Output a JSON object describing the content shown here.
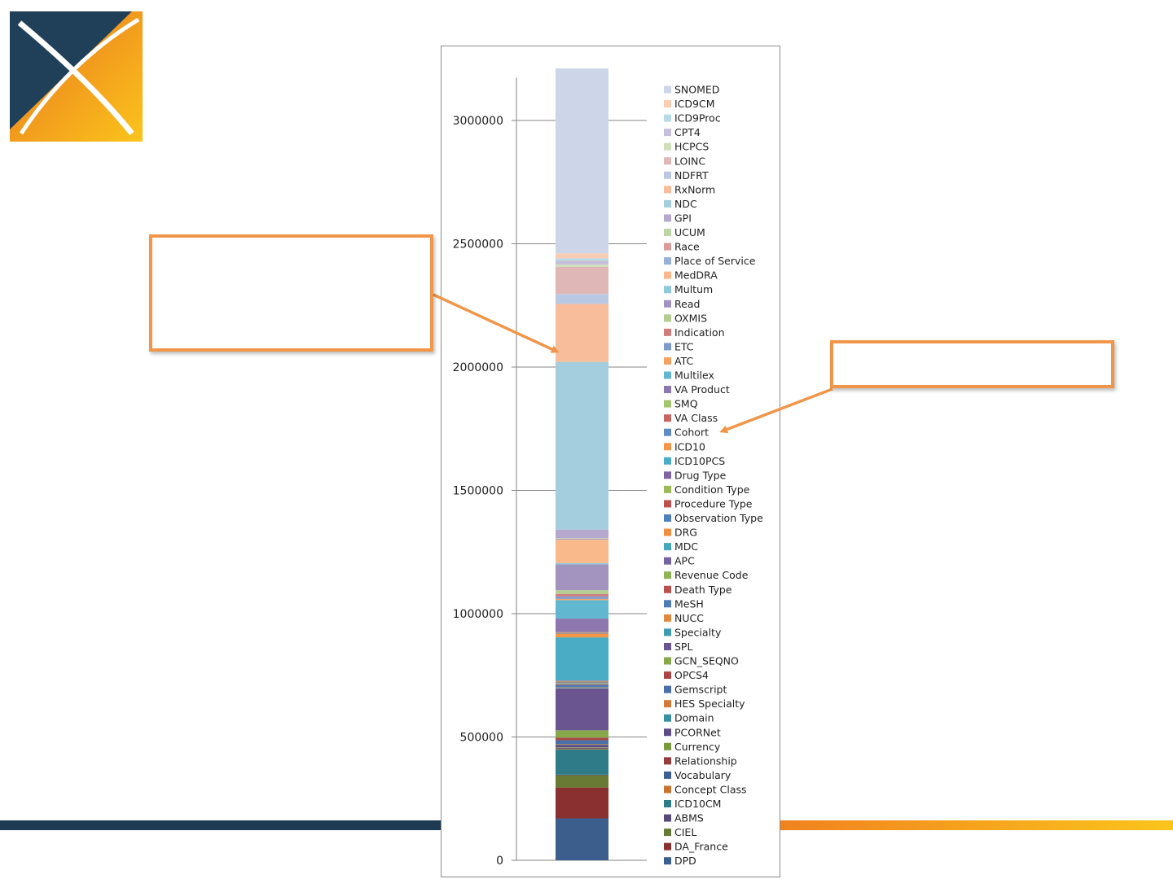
{
  "colors": {
    "navy": "#1f3b53",
    "orange": "#f0821e",
    "yellow": "#fbc41c",
    "callout_border": "#f0964b"
  },
  "logo": {
    "icon": "ohdsi-x-logo-icon"
  },
  "callouts": {
    "left_text": "",
    "right_text": ""
  },
  "chart_data": {
    "type": "bar",
    "stacked": true,
    "title": "",
    "xlabel": "",
    "ylabel": "",
    "ylim": [
      0,
      3200000
    ],
    "yticks": [
      0,
      500000,
      1000000,
      1500000,
      2000000,
      2500000,
      3000000
    ],
    "ytick_labels": [
      "0",
      "500000",
      "1000000",
      "1500000",
      "2000000",
      "2500000",
      "3000000"
    ],
    "grid": false,
    "legend_placement": "right",
    "categories": [
      ""
    ],
    "series": [
      {
        "name": "DPD",
        "values": [
          170000
        ],
        "color": "#3b5e8c"
      },
      {
        "name": "DA_France",
        "values": [
          125000
        ],
        "color": "#8b3030"
      },
      {
        "name": "CIEL",
        "values": [
          50000
        ],
        "color": "#687a33"
      },
      {
        "name": "ABMS",
        "values": [
          2000
        ],
        "color": "#574a7a"
      },
      {
        "name": "ICD10CM",
        "values": [
          103000
        ],
        "color": "#2f7b87"
      },
      {
        "name": "Concept Class",
        "values": [
          2000
        ],
        "color": "#c8732e"
      },
      {
        "name": "Vocabulary",
        "values": [
          2000
        ],
        "color": "#3e5f93"
      },
      {
        "name": "Relationship",
        "values": [
          2000
        ],
        "color": "#943d3b"
      },
      {
        "name": "Currency",
        "values": [
          2000
        ],
        "color": "#7a9a3f"
      },
      {
        "name": "PCORNet",
        "values": [
          10000
        ],
        "color": "#5e4a85"
      },
      {
        "name": "Domain",
        "values": [
          2000
        ],
        "color": "#3a8fa0"
      },
      {
        "name": "HES Specialty",
        "values": [
          2000
        ],
        "color": "#d67b37"
      },
      {
        "name": "Gemscript",
        "values": [
          15000
        ],
        "color": "#4a6ea8"
      },
      {
        "name": "OPCS4",
        "values": [
          10000
        ],
        "color": "#aa4744"
      },
      {
        "name": "GCN_SEQNO",
        "values": [
          30000
        ],
        "color": "#86a74a"
      },
      {
        "name": "SPL",
        "values": [
          170000
        ],
        "color": "#6a5590"
      },
      {
        "name": "Specialty",
        "values": [
          2000
        ],
        "color": "#3d9cb0"
      },
      {
        "name": "NUCC",
        "values": [
          2000
        ],
        "color": "#e08a3e"
      },
      {
        "name": "MeSH",
        "values": [
          10000
        ],
        "color": "#4f7cb5"
      },
      {
        "name": "Death Type",
        "values": [
          2000
        ],
        "color": "#b8504d"
      },
      {
        "name": "Revenue Code",
        "values": [
          2000
        ],
        "color": "#8fb455"
      },
      {
        "name": "APC",
        "values": [
          2000
        ],
        "color": "#7563a0"
      },
      {
        "name": "MDC",
        "values": [
          2000
        ],
        "color": "#45a7bd"
      },
      {
        "name": "DRG",
        "values": [
          2000
        ],
        "color": "#f08d3f"
      },
      {
        "name": "Observation Type",
        "values": [
          2000
        ],
        "color": "#4f81bd"
      },
      {
        "name": "Procedure Type",
        "values": [
          2000
        ],
        "color": "#c0504d"
      },
      {
        "name": "Condition Type",
        "values": [
          2000
        ],
        "color": "#9bbb59"
      },
      {
        "name": "Drug Type",
        "values": [
          2000
        ],
        "color": "#8064a2"
      },
      {
        "name": "ICD10PCS",
        "values": [
          175000
        ],
        "color": "#4bacc6"
      },
      {
        "name": "ICD10",
        "values": [
          15000
        ],
        "color": "#f79646"
      },
      {
        "name": "Cohort",
        "values": [
          2000
        ],
        "color": "#5f8ac6"
      },
      {
        "name": "VA Class",
        "values": [
          2000
        ],
        "color": "#c86663"
      },
      {
        "name": "SMQ",
        "values": [
          2000
        ],
        "color": "#a5c46e"
      },
      {
        "name": "VA Product",
        "values": [
          55000
        ],
        "color": "#8e76ae"
      },
      {
        "name": "Multilex",
        "values": [
          75000
        ],
        "color": "#60b7cf"
      },
      {
        "name": "ATC",
        "values": [
          5000
        ],
        "color": "#f8a261"
      },
      {
        "name": "ETC",
        "values": [
          10000
        ],
        "color": "#7e9bcd"
      },
      {
        "name": "Indication",
        "values": [
          10000
        ],
        "color": "#d07d7b"
      },
      {
        "name": "OXMIS",
        "values": [
          15000
        ],
        "color": "#b3ce8e"
      },
      {
        "name": "Read",
        "values": [
          105000
        ],
        "color": "#a393bf"
      },
      {
        "name": "Multum",
        "values": [
          5000
        ],
        "color": "#8ccadc"
      },
      {
        "name": "MedDRA",
        "values": [
          95000
        ],
        "color": "#f9b98a"
      },
      {
        "name": "Place of Service",
        "values": [
          2000
        ],
        "color": "#97b0d8"
      },
      {
        "name": "Race",
        "values": [
          2000
        ],
        "color": "#d99c9b"
      },
      {
        "name": "UCUM",
        "values": [
          2000
        ],
        "color": "#bcd5a4"
      },
      {
        "name": "GPI",
        "values": [
          35000
        ],
        "color": "#b6a9ce"
      },
      {
        "name": "NDC",
        "values": [
          680000
        ],
        "color": "#a4cddd"
      },
      {
        "name": "RxNorm",
        "values": [
          235000
        ],
        "color": "#f8bd9b"
      },
      {
        "name": "NDFRT",
        "values": [
          40000
        ],
        "color": "#b9c9e3"
      },
      {
        "name": "LOINC",
        "values": [
          110000
        ],
        "color": "#dfb7b7"
      },
      {
        "name": "HCPCS",
        "values": [
          10000
        ],
        "color": "#cfdfbc"
      },
      {
        "name": "CPT4",
        "values": [
          15000
        ],
        "color": "#c6bfd9"
      },
      {
        "name": "ICD9Proc",
        "values": [
          10000
        ],
        "color": "#b7dae4"
      },
      {
        "name": "ICD9CM",
        "values": [
          20000
        ],
        "color": "#f9cdb3"
      },
      {
        "name": "SNOMED",
        "values": [
          750000
        ],
        "color": "#ccd6e8"
      }
    ]
  }
}
